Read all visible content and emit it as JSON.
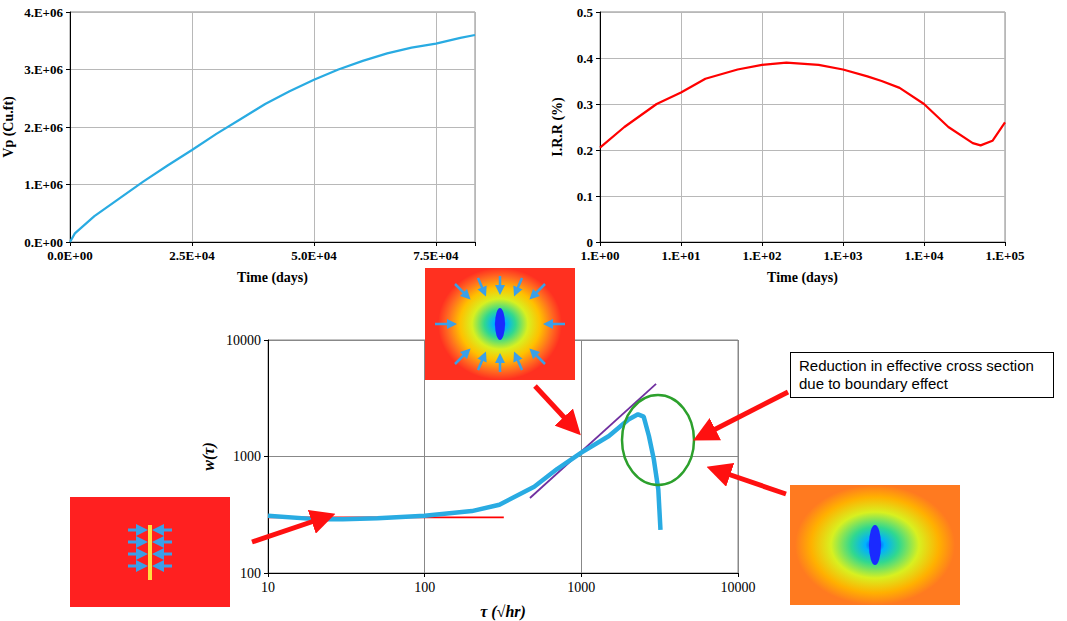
{
  "chart_data": [
    {
      "type": "line",
      "x_label": "Time (days)",
      "y_label": "Vp (Cu.ft)",
      "x": [
        0,
        1000,
        5000,
        10000,
        15000,
        20000,
        25000,
        30000,
        35000,
        40000,
        45000,
        50000,
        55000,
        60000,
        65000,
        70000,
        75000,
        80000,
        83000
      ],
      "values": [
        0,
        150000,
        450000,
        750000,
        1050000,
        1330000,
        1600000,
        1880000,
        2140000,
        2400000,
        2620000,
        2820000,
        3000000,
        3150000,
        3280000,
        3380000,
        3450000,
        3550000,
        3600000
      ],
      "color": "#29abe2",
      "xlim": [
        0,
        83000
      ],
      "xticks": [
        {
          "value": 0,
          "label": "0.0E+00"
        },
        {
          "value": 25000,
          "label": "2.5E+04"
        },
        {
          "value": 50000,
          "label": "5.0E+04"
        },
        {
          "value": 75000,
          "label": "7.5E+04"
        }
      ],
      "ylim": [
        0,
        4000000
      ],
      "yticks": [
        {
          "value": 0,
          "label": "0.E+00"
        },
        {
          "value": 1000000,
          "label": "1.E+06"
        },
        {
          "value": 2000000,
          "label": "2.E+06"
        },
        {
          "value": 3000000,
          "label": "3.E+06"
        },
        {
          "value": 4000000,
          "label": "4.E+06"
        }
      ],
      "grid": true
    },
    {
      "type": "line",
      "x_label": "Time (days)",
      "y_label": "I.R.R (%)",
      "log": "x",
      "x": [
        1,
        2,
        5,
        10,
        20,
        50,
        100,
        200,
        500,
        1000,
        2000,
        3000,
        5000,
        10000,
        20000,
        40000,
        50000,
        70000,
        100000
      ],
      "values": [
        0.205,
        0.25,
        0.3,
        0.325,
        0.355,
        0.375,
        0.385,
        0.39,
        0.385,
        0.375,
        0.36,
        0.35,
        0.335,
        0.3,
        0.25,
        0.215,
        0.21,
        0.22,
        0.26
      ],
      "color": "#ff0000",
      "xlim": [
        1,
        100000
      ],
      "xticks": [
        {
          "value": 1,
          "label": "1.E+00"
        },
        {
          "value": 10,
          "label": "1.E+01"
        },
        {
          "value": 100,
          "label": "1.E+02"
        },
        {
          "value": 1000,
          "label": "1.E+03"
        },
        {
          "value": 10000,
          "label": "1.E+04"
        },
        {
          "value": 100000,
          "label": "1.E+05"
        }
      ],
      "ylim": [
        0,
        0.5
      ],
      "yticks": [
        0,
        0.1,
        0.2,
        0.3,
        0.4,
        0.5
      ],
      "grid": true
    },
    {
      "type": "line",
      "x_label": "τ (√hr)",
      "y_label": "w(τ)",
      "log": true,
      "xlim": [
        10,
        10000
      ],
      "xticks": [
        10,
        100,
        1000,
        10000
      ],
      "ylim": [
        100,
        10000
      ],
      "yticks": [
        100,
        1000,
        10000
      ],
      "grid": true,
      "series": [
        {
          "x": [
            10,
            20,
            30,
            50,
            100,
            200,
            300,
            500,
            700,
            1000,
            1500,
            2000,
            2300,
            2500,
            2700,
            2900,
            3100,
            3200
          ],
          "values": [
            310,
            290,
            290,
            295,
            310,
            340,
            385,
            550,
            780,
            1080,
            1500,
            2080,
            2300,
            2200,
            1500,
            950,
            520,
            235
          ],
          "color": "#29abe2"
        },
        {
          "x": [
            10,
            320
          ],
          "values": [
            300,
            300
          ],
          "color": "#ff0000"
        },
        {
          "x": [
            470,
            3000
          ],
          "values": [
            440,
            4200
          ],
          "color": "#7030a0"
        }
      ],
      "annotations": [
        "Reduction in effective cross section due to boundary effect"
      ]
    }
  ]
}
